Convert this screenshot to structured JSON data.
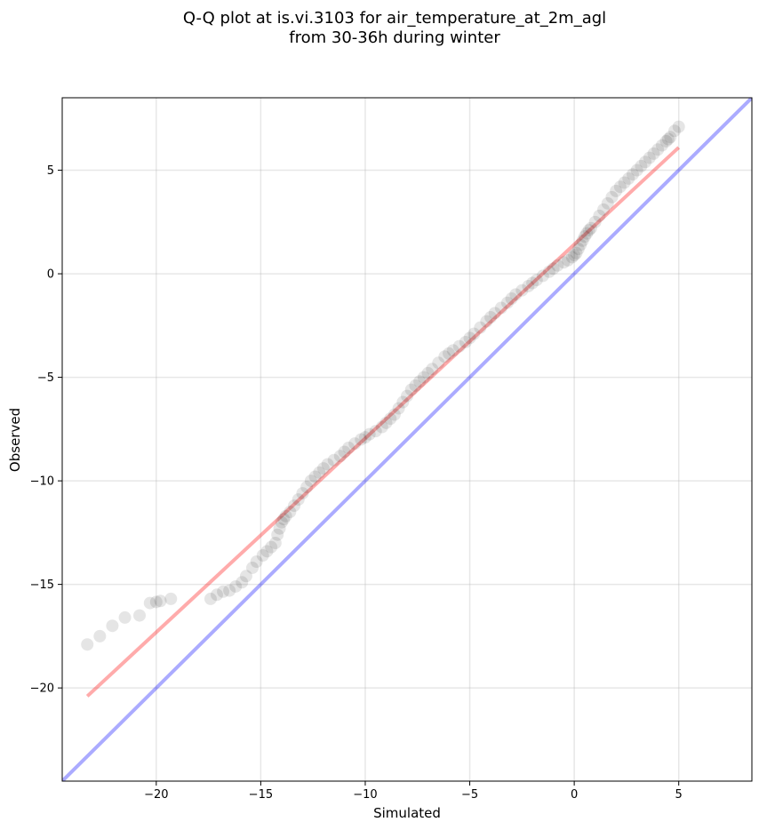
{
  "chart_data": {
    "type": "scatter",
    "title_lines": [
      "Q-Q plot at is.vi.3103 for air_temperature_at_2m_agl",
      "from 30-36h during winter"
    ],
    "xlabel": "Simulated",
    "ylabel": "Observed",
    "xlim": [
      -24.5,
      8.5
    ],
    "ylim": [
      -24.5,
      8.5
    ],
    "xticks": [
      -20,
      -15,
      -10,
      -5,
      0,
      5
    ],
    "yticks": [
      -20,
      -15,
      -10,
      -5,
      0,
      5
    ],
    "xtick_labels": [
      "−20",
      "−15",
      "−10",
      "−5",
      "0",
      "5"
    ],
    "ytick_labels": [
      "−20",
      "−15",
      "−10",
      "−5",
      "0",
      "5"
    ],
    "grid": true,
    "colors": {
      "points": "#000000",
      "fit_line": "#ff0000",
      "identity_line": "#0000ff"
    },
    "fit_line": {
      "x": [
        -23.3,
        5.0
      ],
      "y": [
        -20.4,
        6.1
      ]
    },
    "identity_line": {
      "x": [
        -24.5,
        8.5
      ],
      "y": [
        -24.5,
        8.5
      ]
    },
    "points": {
      "x": [
        -23.3,
        -22.7,
        -22.1,
        -21.5,
        -20.8,
        -20.3,
        -20.0,
        -19.8,
        -19.3,
        -17.4,
        -17.1,
        -16.8,
        -16.5,
        -16.2,
        -15.9,
        -15.7,
        -15.4,
        -15.2,
        -14.9,
        -14.7,
        -14.5,
        -14.3,
        -14.2,
        -14.1,
        -14.0,
        -13.9,
        -13.8,
        -13.6,
        -13.4,
        -13.2,
        -13.0,
        -12.8,
        -12.6,
        -12.4,
        -12.2,
        -12.0,
        -11.8,
        -11.5,
        -11.2,
        -11.0,
        -10.8,
        -10.5,
        -10.2,
        -10.0,
        -9.8,
        -9.5,
        -9.2,
        -9.0,
        -8.8,
        -8.6,
        -8.4,
        -8.2,
        -8.0,
        -7.8,
        -7.6,
        -7.4,
        -7.2,
        -7.0,
        -6.8,
        -6.5,
        -6.2,
        -6.0,
        -5.8,
        -5.5,
        -5.2,
        -5.0,
        -4.8,
        -4.5,
        -4.2,
        -4.0,
        -3.8,
        -3.5,
        -3.2,
        -3.0,
        -2.8,
        -2.5,
        -2.2,
        -2.0,
        -1.8,
        -1.5,
        -1.2,
        -1.0,
        -0.8,
        -0.5,
        -0.3,
        -0.1,
        0.0,
        0.1,
        0.2,
        0.3,
        0.4,
        0.5,
        0.6,
        0.7,
        0.8,
        1.0,
        1.2,
        1.4,
        1.6,
        1.8,
        2.0,
        2.2,
        2.4,
        2.6,
        2.8,
        3.0,
        3.2,
        3.4,
        3.6,
        3.8,
        4.0,
        4.2,
        4.4,
        4.5,
        4.6,
        4.8,
        5.0
      ],
      "y": [
        -17.9,
        -17.5,
        -17.0,
        -16.6,
        -16.5,
        -15.9,
        -15.85,
        -15.8,
        -15.7,
        -15.7,
        -15.5,
        -15.35,
        -15.3,
        -15.1,
        -14.9,
        -14.6,
        -14.2,
        -13.9,
        -13.6,
        -13.4,
        -13.2,
        -13.0,
        -12.6,
        -12.3,
        -12.0,
        -11.85,
        -11.7,
        -11.5,
        -11.2,
        -10.9,
        -10.6,
        -10.3,
        -10.0,
        -9.8,
        -9.6,
        -9.4,
        -9.2,
        -9.0,
        -8.8,
        -8.6,
        -8.4,
        -8.2,
        -8.0,
        -7.9,
        -7.75,
        -7.6,
        -7.4,
        -7.2,
        -7.0,
        -6.8,
        -6.5,
        -6.2,
        -5.9,
        -5.6,
        -5.4,
        -5.2,
        -5.0,
        -4.8,
        -4.6,
        -4.3,
        -4.0,
        -3.85,
        -3.7,
        -3.5,
        -3.3,
        -3.1,
        -2.9,
        -2.6,
        -2.3,
        -2.1,
        -1.9,
        -1.65,
        -1.4,
        -1.2,
        -1.0,
        -0.8,
        -0.6,
        -0.45,
        -0.3,
        -0.1,
        0.1,
        0.25,
        0.4,
        0.55,
        0.65,
        0.8,
        0.9,
        1.0,
        1.2,
        1.4,
        1.6,
        1.8,
        1.95,
        2.1,
        2.2,
        2.5,
        2.8,
        3.1,
        3.4,
        3.7,
        4.0,
        4.2,
        4.4,
        4.6,
        4.8,
        5.0,
        5.2,
        5.4,
        5.6,
        5.8,
        6.0,
        6.2,
        6.4,
        6.5,
        6.6,
        6.9,
        7.1
      ]
    }
  }
}
